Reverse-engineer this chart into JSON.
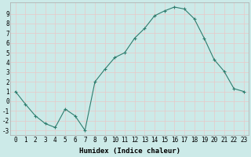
{
  "x": [
    0,
    1,
    2,
    3,
    4,
    5,
    6,
    7,
    8,
    9,
    10,
    11,
    12,
    13,
    14,
    15,
    16,
    17,
    18,
    19,
    20,
    21,
    22,
    23
  ],
  "y": [
    1,
    -0.3,
    -1.5,
    -2.3,
    -2.7,
    -0.8,
    -1.5,
    -3.0,
    2.0,
    3.3,
    4.5,
    5.0,
    6.5,
    7.5,
    8.8,
    9.3,
    9.7,
    9.5,
    8.5,
    6.5,
    4.3,
    3.1,
    1.3,
    1.0
  ],
  "line_color": "#2e7d6e",
  "marker": "+",
  "marker_size": 3,
  "bg_color": "#cceae8",
  "grid_color": "#e8c8c8",
  "xlabel": "Humidex (Indice chaleur)",
  "xlim": [
    -0.5,
    23.5
  ],
  "ylim": [
    -3.5,
    10.2
  ],
  "yticks": [
    -3,
    -2,
    -1,
    0,
    1,
    2,
    3,
    4,
    5,
    6,
    7,
    8,
    9
  ],
  "xticks": [
    0,
    1,
    2,
    3,
    4,
    5,
    6,
    7,
    8,
    9,
    10,
    11,
    12,
    13,
    14,
    15,
    16,
    17,
    18,
    19,
    20,
    21,
    22,
    23
  ],
  "label_fontsize": 6.5,
  "tick_fontsize": 5.5
}
